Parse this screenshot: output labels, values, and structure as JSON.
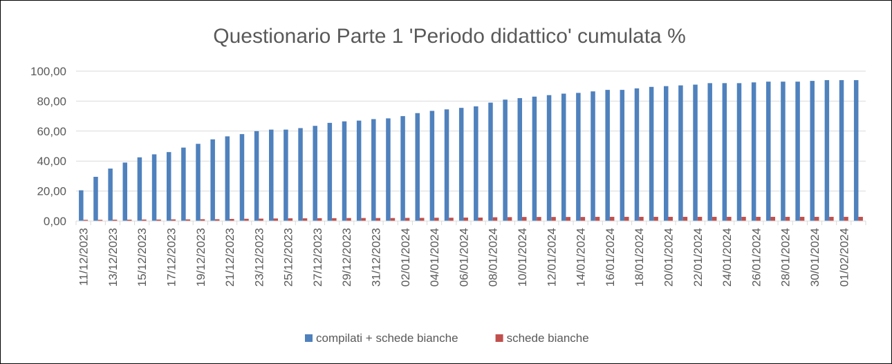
{
  "chart_data": {
    "type": "bar",
    "title": "Questionario Parte 1 'Periodo didattico' cumulata %",
    "categories": [
      "11/12/2023",
      null,
      "13/12/2023",
      null,
      "15/12/2023",
      null,
      "17/12/2023",
      null,
      "19/12/2023",
      null,
      "21/12/2023",
      null,
      "23/12/2023",
      null,
      "25/12/2023",
      null,
      "27/12/2023",
      null,
      "29/12/2023",
      null,
      "31/12/2023",
      null,
      "02/01/2024",
      null,
      "04/01/2024",
      null,
      "06/01/2024",
      null,
      "08/01/2024",
      null,
      "10/01/2024",
      null,
      "12/01/2024",
      null,
      "14/01/2024",
      null,
      "16/01/2024",
      null,
      "18/01/2024",
      null,
      "20/01/2024",
      null,
      "22/01/2024",
      null,
      "24/01/2024",
      null,
      "26/01/2024",
      null,
      "28/01/2024",
      null,
      "30/01/2024",
      null,
      "01/02/2024",
      null
    ],
    "series": [
      {
        "name": "compilati + schede bianche",
        "color": "#4f81bd",
        "values": [
          20.5,
          29.5,
          35,
          39,
          42.5,
          44.5,
          46,
          49,
          51.5,
          54.5,
          56.5,
          58,
          60,
          61,
          61,
          62,
          63.5,
          65.5,
          66.5,
          67,
          68,
          68.5,
          70,
          72,
          73.5,
          74.5,
          75.5,
          76.5,
          79,
          81,
          82,
          83,
          84,
          85,
          85.5,
          86.5,
          87.5,
          87.5,
          88.5,
          89.5,
          90,
          90.5,
          91,
          92,
          92,
          92,
          92.5,
          93,
          93,
          93,
          93.5,
          94,
          94,
          94
        ]
      },
      {
        "name": "schede bianche",
        "color": "#c0504d",
        "values": [
          0.8,
          0.8,
          0.9,
          0.9,
          1,
          1,
          1.1,
          1.1,
          1.2,
          1.2,
          1.4,
          1.5,
          1.6,
          1.7,
          1.8,
          1.8,
          1.9,
          1.9,
          2,
          2,
          2,
          2,
          2.1,
          2.1,
          2.2,
          2.2,
          2.3,
          2.3,
          2.5,
          2.6,
          2.7,
          2.7,
          2.7,
          2.7,
          2.7,
          2.8,
          2.8,
          2.8,
          2.8,
          2.8,
          2.8,
          2.8,
          2.8,
          2.8,
          2.8,
          2.8,
          2.8,
          2.8,
          2.8,
          2.8,
          2.8,
          2.8,
          2.8,
          2.8
        ]
      }
    ],
    "ylim": [
      0,
      100
    ],
    "yticks": [
      {
        "value": 0,
        "label": "0,00"
      },
      {
        "value": 20,
        "label": "20,00"
      },
      {
        "value": 40,
        "label": "40,00"
      },
      {
        "value": 60,
        "label": "60,00"
      },
      {
        "value": 80,
        "label": "80,00"
      },
      {
        "value": 100,
        "label": "100,00"
      }
    ],
    "grid": true,
    "legend": "bottom"
  }
}
